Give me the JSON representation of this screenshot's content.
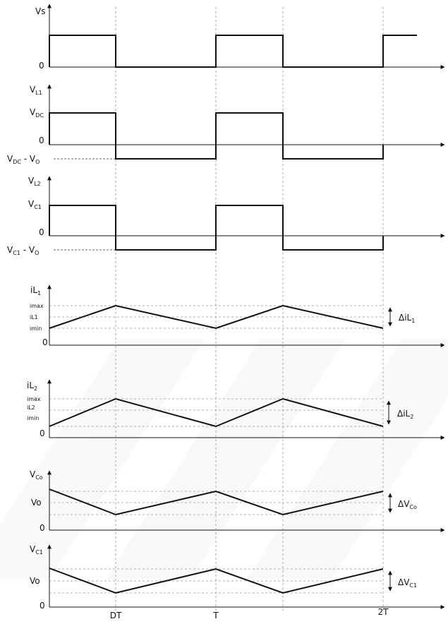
{
  "waveforms": [
    {
      "id": "vs",
      "y_label": "Vs",
      "zero_label": "0"
    },
    {
      "id": "vl1",
      "y_label": {
        "main": "V",
        "sub": "L1"
      },
      "high_label": {
        "main": "V",
        "sub": "DC"
      },
      "zero_label": "0",
      "low_label": {
        "parts": [
          {
            "main": "V",
            "sub": "DC"
          },
          {
            "main": " - V",
            "sub": "O"
          }
        ]
      }
    },
    {
      "id": "vl2",
      "y_label": {
        "main": "V",
        "sub": "L2"
      },
      "high_label": {
        "main": "V",
        "sub": "C1"
      },
      "zero_label": "0",
      "low_label": {
        "parts": [
          {
            "main": "V",
            "sub": "C1"
          },
          {
            "main": " - V",
            "sub": "O"
          }
        ]
      }
    },
    {
      "id": "il1",
      "y_label": {
        "main": "iL",
        "sub": "1"
      },
      "levels": [
        "imax",
        "iL1",
        "imin"
      ],
      "zero_label": "0",
      "delta_label": {
        "main": "ΔiL",
        "sub": "1"
      }
    },
    {
      "id": "il2",
      "y_label": {
        "main": "iL",
        "sub": "2"
      },
      "levels": [
        "imax",
        "iL2",
        "imin"
      ],
      "zero_label": "0",
      "delta_label": {
        "main": "ΔiL",
        "sub": "2"
      }
    },
    {
      "id": "vco",
      "y_label": {
        "main": "V",
        "sub": "Co"
      },
      "level_label": "Vo",
      "zero_label": "0",
      "delta_label": {
        "main": "ΔV",
        "sub": "Co"
      }
    },
    {
      "id": "vc1",
      "y_label": {
        "main": "V",
        "sub": "C1"
      },
      "level_label": "Vo",
      "zero_label": "0",
      "delta_label": {
        "main": "ΔV",
        "sub": "C1"
      }
    }
  ],
  "time_axis": {
    "ticks": [
      "DT",
      "T",
      "2T"
    ]
  }
}
